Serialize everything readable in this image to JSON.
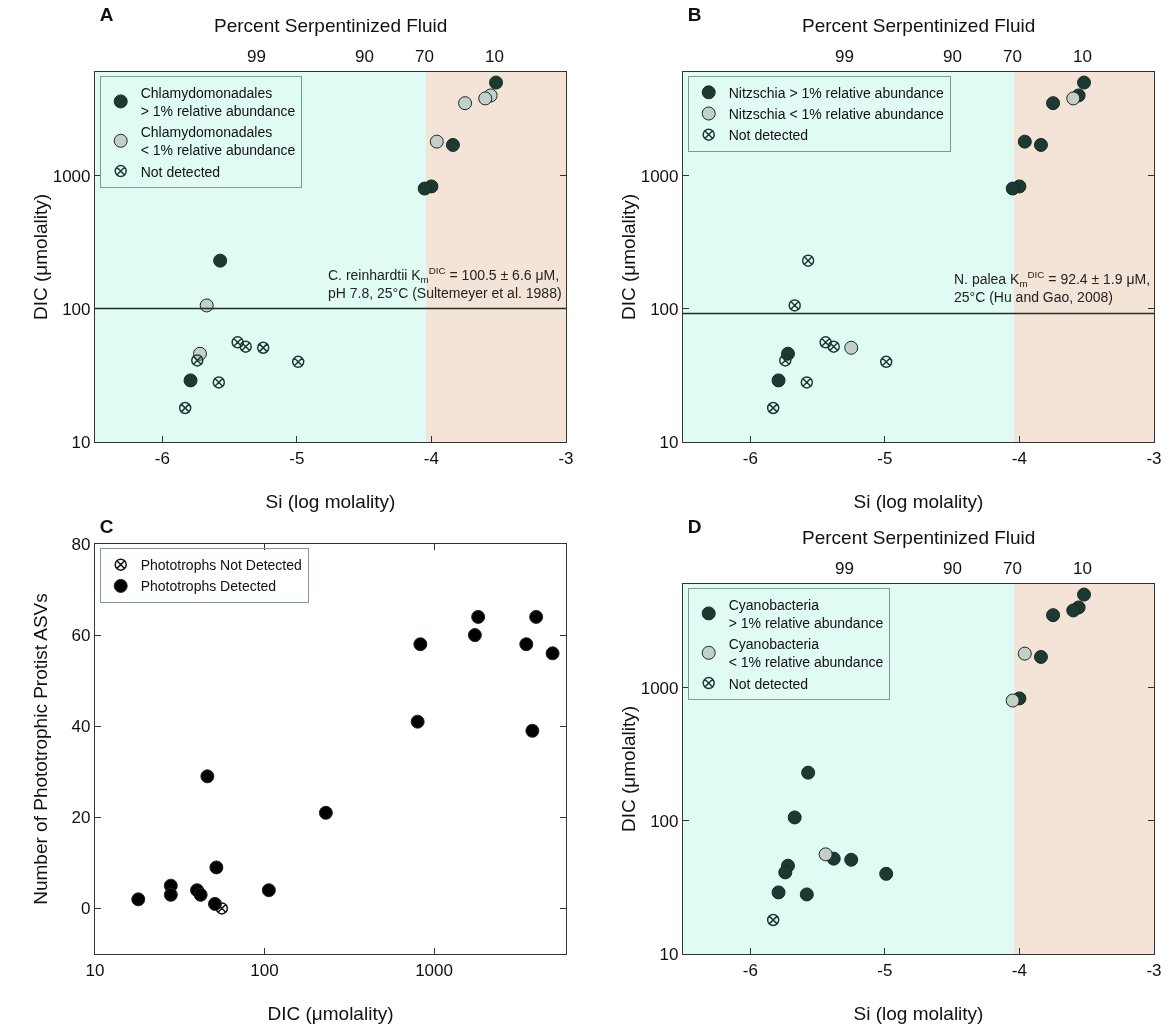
{
  "chart_data": [
    {
      "type": "scatter",
      "title": "A",
      "xlabel": "Si (log molality)",
      "ylabel": "DIC (μmolality)",
      "x2label": "Percent Serpentinized Fluid",
      "xlim": [
        -6.5,
        -3
      ],
      "xticks": [
        -6,
        -5,
        -4,
        -3
      ],
      "ylim": [
        10,
        6000
      ],
      "yticks": [
        10,
        100,
        1000
      ],
      "annotations": [
        {
          "text": "99",
          "x": -5.3,
          "y": 6000
        },
        {
          "text": "90",
          "x": -4.5,
          "y": 6000
        },
        {
          "text": "70",
          "x": -4.05,
          "y": 6000
        },
        {
          "text": "10",
          "x": -3.53,
          "y": 6000
        }
      ],
      "log": "y",
      "grid": false,
      "legend": "top left",
      "bands": [
        {
          "axis": "x",
          "from": -6.5,
          "to": -4.04,
          "color": "#e0fbf3"
        },
        {
          "axis": "x",
          "from": -4.04,
          "to": -3,
          "color": "#f4e4d8"
        }
      ],
      "ref_lines": [
        {
          "axis": "y",
          "value": 100.5,
          "label": "C. reinhardtii K$_{m}$$^{DIC}$ = 100.5 ± 6.6 μM,\npH 7.8, 25°C (Sultemeyer et al. 1988)",
          "color": "#1e2e2a"
        }
      ],
      "series": [
        {
          "name": "Chlamydomonadales\n> 1% relative abundance",
          "color": "#1c3a32",
          "marker": "circle",
          "x": [
            -3.52,
            -3.84,
            -4.0,
            -4.05,
            -5.57,
            -5.79
          ],
          "values": [
            5000,
            1700,
            830,
            800,
            230,
            29
          ]
        },
        {
          "name": "Chlamydomonadales\n< 1% relative abundance",
          "color": "#c3cfc9",
          "marker": "circle",
          "x": [
            -3.56,
            -3.6,
            -3.75,
            -3.96,
            -5.67,
            -5.72
          ],
          "values": [
            4000,
            3800,
            3500,
            1800,
            106,
            46
          ]
        },
        {
          "name": "Not detected",
          "color": "#1c3a32",
          "marker": "cross",
          "x": [
            -5.74,
            -5.58,
            -5.83,
            -5.44,
            -5.38,
            -5.25,
            -4.99
          ],
          "values": [
            41,
            28,
            18,
            56,
            52,
            51,
            40
          ]
        }
      ]
    },
    {
      "type": "scatter",
      "title": "B",
      "xlabel": "Si (log molality)",
      "ylabel": "DIC (μmolality)",
      "x2label": "Percent Serpentinized Fluid",
      "xlim": [
        -6.5,
        -3
      ],
      "xticks": [
        -6,
        -5,
        -4,
        -3
      ],
      "ylim": [
        10,
        6000
      ],
      "yticks": [
        10,
        100,
        1000
      ],
      "annotations": [
        {
          "text": "99",
          "x": -5.3,
          "y": 6000
        },
        {
          "text": "90",
          "x": -4.5,
          "y": 6000
        },
        {
          "text": "70",
          "x": -4.05,
          "y": 6000
        },
        {
          "text": "10",
          "x": -3.53,
          "y": 6000
        }
      ],
      "log": "y",
      "grid": false,
      "legend": "top left",
      "bands": [
        {
          "axis": "x",
          "from": -6.5,
          "to": -4.04,
          "color": "#e0fbf3"
        },
        {
          "axis": "x",
          "from": -4.04,
          "to": -3,
          "color": "#f4e4d8"
        }
      ],
      "ref_lines": [
        {
          "axis": "y",
          "value": 92.4,
          "label": "N. palea K$_{m}$$^{DIC}$ = 92.4 ± 1.9 μM,\n25°C (Hu and Gao, 2008)",
          "color": "#1e2e2a"
        }
      ],
      "series": [
        {
          "name": "Nitzschia > 1% relative abundance",
          "color": "#1c3a32",
          "marker": "circle",
          "x": [
            -3.52,
            -3.56,
            -3.75,
            -3.96,
            -3.84,
            -4.0,
            -4.05,
            -5.72,
            -5.79
          ],
          "values": [
            5000,
            4000,
            3500,
            1800,
            1700,
            830,
            800,
            46,
            29
          ]
        },
        {
          "name": "Nitzschia < 1% relative abundance",
          "color": "#c3cfc9",
          "marker": "circle",
          "x": [
            -3.6,
            -5.25
          ],
          "values": [
            3800,
            51
          ]
        },
        {
          "name": "Not detected",
          "color": "#1c3a32",
          "marker": "cross",
          "x": [
            -5.57,
            -5.67,
            -5.74,
            -5.58,
            -5.83,
            -5.44,
            -5.38,
            -4.99
          ],
          "values": [
            230,
            106,
            41,
            28,
            18,
            56,
            52,
            40
          ]
        }
      ]
    },
    {
      "type": "scatter",
      "title": "C",
      "xlabel": "DIC (μmolality)",
      "ylabel": "Number of Phototrophic Protist ASVs",
      "xlim": [
        10,
        6000
      ],
      "xticks": [
        10,
        100,
        1000
      ],
      "ylim": [
        -10,
        80
      ],
      "yticks": [
        0,
        20,
        40,
        60,
        80
      ],
      "log": "x",
      "grid": false,
      "legend": "top left",
      "series": [
        {
          "name": "Phototrophs Not Detected",
          "color": "#111111",
          "marker": "cross",
          "x": [
            56
          ],
          "values": [
            0
          ]
        },
        {
          "name": "Phototrophs Detected",
          "color": "#000000",
          "marker": "circle",
          "x": [
            18,
            28,
            28,
            40,
            42,
            52,
            51,
            46,
            106,
            230,
            800,
            830,
            1740,
            1820,
            3500,
            3800,
            4000,
            5000
          ],
          "values": [
            2,
            5,
            3,
            4,
            3,
            9,
            1,
            29,
            4,
            21,
            41,
            58,
            60,
            64,
            58,
            39,
            64,
            56
          ]
        }
      ]
    },
    {
      "type": "scatter",
      "title": "D",
      "xlabel": "Si (log molality)",
      "ylabel": "DIC (μmolality)",
      "x2label": "Percent Serpentinized Fluid",
      "xlim": [
        -6.5,
        -3
      ],
      "xticks": [
        -6,
        -5,
        -4,
        -3
      ],
      "ylim": [
        10,
        6000
      ],
      "yticks": [
        10,
        100,
        1000
      ],
      "annotations": [
        {
          "text": "99",
          "x": -5.3,
          "y": 6000
        },
        {
          "text": "90",
          "x": -4.5,
          "y": 6000
        },
        {
          "text": "70",
          "x": -4.05,
          "y": 6000
        },
        {
          "text": "10",
          "x": -3.53,
          "y": 6000
        }
      ],
      "log": "y",
      "grid": false,
      "legend": "top left",
      "bands": [
        {
          "axis": "x",
          "from": -6.5,
          "to": -4.04,
          "color": "#e0fbf3"
        },
        {
          "axis": "x",
          "from": -4.04,
          "to": -3,
          "color": "#f4e4d8"
        }
      ],
      "series": [
        {
          "name": "Cyanobacteria\n> 1% relative abundance",
          "color": "#1c3a32",
          "marker": "circle",
          "x": [
            -3.52,
            -3.56,
            -3.6,
            -3.75,
            -3.84,
            -4.0,
            -5.57,
            -5.67,
            -5.72,
            -5.74,
            -5.79,
            -5.58,
            -5.38,
            -5.25,
            -4.99
          ],
          "values": [
            5000,
            4000,
            3800,
            3500,
            1700,
            830,
            230,
            106,
            46,
            41,
            29,
            28,
            52,
            51,
            40
          ]
        },
        {
          "name": "Cyanobacteria\n< 1% relative abundance",
          "color": "#c3cfc9",
          "marker": "circle",
          "x": [
            -3.96,
            -4.05,
            -5.44
          ],
          "values": [
            1800,
            800,
            56
          ]
        },
        {
          "name": "Not detected",
          "color": "#1c3a32",
          "marker": "cross",
          "x": [
            -5.83
          ],
          "values": [
            18
          ]
        }
      ]
    }
  ]
}
